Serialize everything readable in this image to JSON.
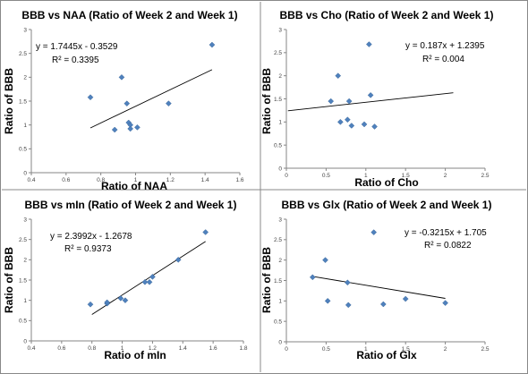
{
  "chart_data": [
    {
      "type": "scatter",
      "title": "BBB vs NAA (Ratio of Week 2 and Week 1)",
      "xlabel": "Ratio of NAA",
      "ylabel": "Ratio of BBB",
      "xlim": [
        0.4,
        1.6
      ],
      "ylim": [
        0,
        3
      ],
      "xticks": [
        "0.4",
        "0.6",
        "0.8",
        "1",
        "1.2",
        "1.4",
        "1.6"
      ],
      "yticks": [
        "0",
        "0.5",
        "1",
        "1.5",
        "2",
        "2.5",
        "3"
      ],
      "equation": "y = 1.7445x - 0.3529",
      "r2": "R² = 0.3395",
      "trendline": {
        "slope": 1.7445,
        "intercept": -0.3529,
        "x_range": [
          0.74,
          1.44
        ]
      },
      "points": [
        {
          "x": 0.74,
          "y": 1.58
        },
        {
          "x": 0.88,
          "y": 0.9
        },
        {
          "x": 0.92,
          "y": 2.0
        },
        {
          "x": 0.95,
          "y": 1.45
        },
        {
          "x": 0.96,
          "y": 1.05
        },
        {
          "x": 0.97,
          "y": 1.0
        },
        {
          "x": 0.97,
          "y": 0.92
        },
        {
          "x": 1.01,
          "y": 0.95
        },
        {
          "x": 1.19,
          "y": 1.45
        },
        {
          "x": 1.44,
          "y": 2.68
        }
      ],
      "grid": false
    },
    {
      "type": "scatter",
      "title": "BBB vs Cho (Ratio of Week 2 and Week 1)",
      "xlabel": "Ratio of Cho",
      "ylabel": "Ratio of BBB",
      "xlim": [
        0,
        2.5
      ],
      "ylim": [
        0,
        3
      ],
      "xticks": [
        "0",
        "0.5",
        "1",
        "1.5",
        "2",
        "2.5"
      ],
      "yticks": [
        "0",
        "0.5",
        "1",
        "1.5",
        "2",
        "2.5",
        "3"
      ],
      "equation": "y = 0.187x + 1.2395",
      "r2": "R² = 0.004",
      "trendline": {
        "slope": 0.187,
        "intercept": 1.2395,
        "x_range": [
          0.02,
          2.1
        ]
      },
      "points": [
        {
          "x": 0.56,
          "y": 1.45
        },
        {
          "x": 0.65,
          "y": 2.0
        },
        {
          "x": 0.68,
          "y": 1.0
        },
        {
          "x": 0.77,
          "y": 1.05
        },
        {
          "x": 0.79,
          "y": 1.45
        },
        {
          "x": 0.82,
          "y": 0.92
        },
        {
          "x": 0.98,
          "y": 0.95
        },
        {
          "x": 1.04,
          "y": 2.68
        },
        {
          "x": 1.06,
          "y": 1.58
        },
        {
          "x": 1.11,
          "y": 0.9
        }
      ],
      "grid": false
    },
    {
      "type": "scatter",
      "title": "BBB vs mIn (Ratio of Week 2 and Week 1)",
      "xlabel": "Ratio of mIn",
      "ylabel": "Ratio of BBB",
      "xlim": [
        0.4,
        1.8
      ],
      "ylim": [
        0,
        3
      ],
      "xticks": [
        "0.4",
        "0.6",
        "0.8",
        "1",
        "1.2",
        "1.4",
        "1.6",
        "1.8"
      ],
      "yticks": [
        "0",
        "0.5",
        "1",
        "1.5",
        "2",
        "2.5",
        "3"
      ],
      "equation": "y = 2.3992x - 1.2678",
      "r2": "R² = 0.9373",
      "trendline": {
        "slope": 2.3992,
        "intercept": -1.2678,
        "x_range": [
          0.8,
          1.55
        ]
      },
      "points": [
        {
          "x": 0.79,
          "y": 0.9
        },
        {
          "x": 0.9,
          "y": 0.92
        },
        {
          "x": 0.9,
          "y": 0.95
        },
        {
          "x": 0.99,
          "y": 1.05
        },
        {
          "x": 1.02,
          "y": 1.0
        },
        {
          "x": 1.15,
          "y": 1.45
        },
        {
          "x": 1.18,
          "y": 1.45
        },
        {
          "x": 1.2,
          "y": 1.58
        },
        {
          "x": 1.37,
          "y": 2.0
        },
        {
          "x": 1.55,
          "y": 2.68
        }
      ],
      "grid": false
    },
    {
      "type": "scatter",
      "title": "BBB vs Glx (Ratio of Week 2 and Week 1)",
      "xlabel": "Ratio of Glx",
      "ylabel": "Ratio of BBB",
      "xlim": [
        0,
        2.5
      ],
      "ylim": [
        0,
        3
      ],
      "xticks": [
        "0",
        "0.5",
        "1",
        "1.5",
        "2",
        "2.5"
      ],
      "yticks": [
        "0",
        "0.5",
        "1",
        "1.5",
        "2",
        "2.5",
        "3"
      ],
      "equation": "y = -0.3215x + 1.705",
      "r2": "R² = 0.0822",
      "trendline": {
        "slope": -0.3215,
        "intercept": 1.705,
        "x_range": [
          0.33,
          2.0
        ]
      },
      "points": [
        {
          "x": 0.33,
          "y": 1.58
        },
        {
          "x": 0.49,
          "y": 2.0
        },
        {
          "x": 0.52,
          "y": 1.0
        },
        {
          "x": 0.77,
          "y": 1.45
        },
        {
          "x": 0.78,
          "y": 0.9
        },
        {
          "x": 1.1,
          "y": 2.68
        },
        {
          "x": 1.22,
          "y": 0.92
        },
        {
          "x": 1.5,
          "y": 1.05
        },
        {
          "x": 2.0,
          "y": 0.95
        }
      ],
      "grid": false
    }
  ],
  "colors": {
    "marker": "#4f81bd",
    "marker_stroke": "#3a6699",
    "axis": "#858585",
    "trendline": "#000000",
    "panel_border": "#888888"
  }
}
